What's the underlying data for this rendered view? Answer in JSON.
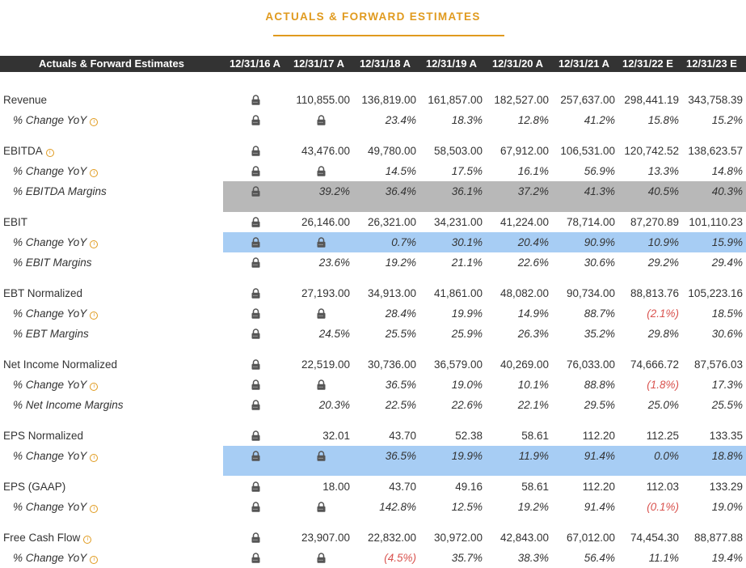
{
  "page": {
    "title": "ACTUALS & FORWARD ESTIMATES"
  },
  "table": {
    "header_label": "Actuals & Forward Estimates",
    "columns": [
      "12/31/16 A",
      "12/31/17 A",
      "12/31/18 A",
      "12/31/19 A",
      "12/31/20 A",
      "12/31/21 A",
      "12/31/22 E",
      "12/31/23 E"
    ],
    "info_icon": "info-circle-icon",
    "lock_icon": "lock-icon",
    "colors": {
      "accent": "#e09a1e",
      "header_bg": "#333333",
      "negative": "#d9534f",
      "highlight_gray": "#b8b8b8",
      "highlight_blue": "#a7cdf4"
    },
    "rows": [
      {
        "label": "Revenue",
        "sub": false,
        "info": false,
        "it": false,
        "hl": "",
        "values": [
          "L",
          "110,855.00",
          "136,819.00",
          "161,857.00",
          "182,527.00",
          "257,637.00",
          "298,441.19",
          "343,758.39"
        ]
      },
      {
        "label": "% Change YoY",
        "sub": true,
        "info": true,
        "it": true,
        "hl": "",
        "values": [
          "L",
          "L",
          "23.4%",
          "18.3%",
          "12.8%",
          "41.2%",
          "15.8%",
          "15.2%"
        ]
      },
      {
        "label": "EBITDA",
        "sub": false,
        "info": true,
        "it": false,
        "hl": "",
        "values": [
          "L",
          "43,476.00",
          "49,780.00",
          "58,503.00",
          "67,912.00",
          "106,531.00",
          "120,742.52",
          "138,623.57"
        ]
      },
      {
        "label": "% Change YoY",
        "sub": true,
        "info": true,
        "it": true,
        "hl": "",
        "values": [
          "L",
          "L",
          "14.5%",
          "17.5%",
          "16.1%",
          "56.9%",
          "13.3%",
          "14.8%"
        ]
      },
      {
        "label": "% EBITDA Margins",
        "sub": true,
        "info": false,
        "it": true,
        "hl": "gray",
        "values": [
          "L",
          "39.2%",
          "36.4%",
          "36.1%",
          "37.2%",
          "41.3%",
          "40.5%",
          "40.3%"
        ]
      },
      {
        "label": "EBIT",
        "sub": false,
        "info": false,
        "it": false,
        "hl": "",
        "values": [
          "L",
          "26,146.00",
          "26,321.00",
          "34,231.00",
          "41,224.00",
          "78,714.00",
          "87,270.89",
          "101,110.23"
        ]
      },
      {
        "label": "% Change YoY",
        "sub": true,
        "info": true,
        "it": true,
        "hl": "blue",
        "values": [
          "L",
          "L",
          "0.7%",
          "30.1%",
          "20.4%",
          "90.9%",
          "10.9%",
          "15.9%"
        ]
      },
      {
        "label": "% EBIT Margins",
        "sub": true,
        "info": false,
        "it": true,
        "hl": "",
        "values": [
          "L",
          "23.6%",
          "19.2%",
          "21.1%",
          "22.6%",
          "30.6%",
          "29.2%",
          "29.4%"
        ]
      },
      {
        "label": "EBT Normalized",
        "sub": false,
        "info": false,
        "it": false,
        "hl": "",
        "values": [
          "L",
          "27,193.00",
          "34,913.00",
          "41,861.00",
          "48,082.00",
          "90,734.00",
          "88,813.76",
          "105,223.16"
        ]
      },
      {
        "label": "% Change YoY",
        "sub": true,
        "info": true,
        "it": true,
        "hl": "",
        "values": [
          "L",
          "L",
          "28.4%",
          "19.9%",
          "14.9%",
          "88.7%",
          "(2.1%)",
          "18.5%"
        ]
      },
      {
        "label": "% EBT Margins",
        "sub": true,
        "info": false,
        "it": true,
        "hl": "",
        "values": [
          "L",
          "24.5%",
          "25.5%",
          "25.9%",
          "26.3%",
          "35.2%",
          "29.8%",
          "30.6%"
        ]
      },
      {
        "label": "Net Income Normalized",
        "sub": false,
        "info": false,
        "it": false,
        "hl": "",
        "values": [
          "L",
          "22,519.00",
          "30,736.00",
          "36,579.00",
          "40,269.00",
          "76,033.00",
          "74,666.72",
          "87,576.03"
        ]
      },
      {
        "label": "% Change YoY",
        "sub": true,
        "info": true,
        "it": true,
        "hl": "",
        "values": [
          "L",
          "L",
          "36.5%",
          "19.0%",
          "10.1%",
          "88.8%",
          "(1.8%)",
          "17.3%"
        ]
      },
      {
        "label": "% Net Income Margins",
        "sub": true,
        "info": false,
        "it": true,
        "hl": "",
        "values": [
          "L",
          "20.3%",
          "22.5%",
          "22.6%",
          "22.1%",
          "29.5%",
          "25.0%",
          "25.5%"
        ]
      },
      {
        "label": "EPS Normalized",
        "sub": false,
        "info": false,
        "it": false,
        "hl": "",
        "values": [
          "L",
          "32.01",
          "43.70",
          "52.38",
          "58.61",
          "112.20",
          "112.25",
          "133.35"
        ]
      },
      {
        "label": "% Change YoY",
        "sub": true,
        "info": true,
        "it": true,
        "hl": "blue",
        "values": [
          "L",
          "L",
          "36.5%",
          "19.9%",
          "11.9%",
          "91.4%",
          "0.0%",
          "18.8%"
        ]
      },
      {
        "label": "EPS (GAAP)",
        "sub": false,
        "info": false,
        "it": false,
        "hl": "",
        "values": [
          "L",
          "18.00",
          "43.70",
          "49.16",
          "58.61",
          "112.20",
          "112.03",
          "133.29"
        ]
      },
      {
        "label": "% Change YoY",
        "sub": true,
        "info": true,
        "it": true,
        "hl": "",
        "values": [
          "L",
          "L",
          "142.8%",
          "12.5%",
          "19.2%",
          "91.4%",
          "(0.1%)",
          "19.0%"
        ]
      },
      {
        "label": "Free Cash Flow",
        "sub": false,
        "info": true,
        "it": false,
        "hl": "",
        "values": [
          "L",
          "23,907.00",
          "22,832.00",
          "30,972.00",
          "42,843.00",
          "67,012.00",
          "74,454.30",
          "88,877.88"
        ]
      },
      {
        "label": "% Change YoY",
        "sub": true,
        "info": true,
        "it": true,
        "hl": "",
        "values": [
          "L",
          "L",
          "(4.5%)",
          "35.7%",
          "38.3%",
          "56.4%",
          "11.1%",
          "19.4%"
        ]
      }
    ]
  }
}
